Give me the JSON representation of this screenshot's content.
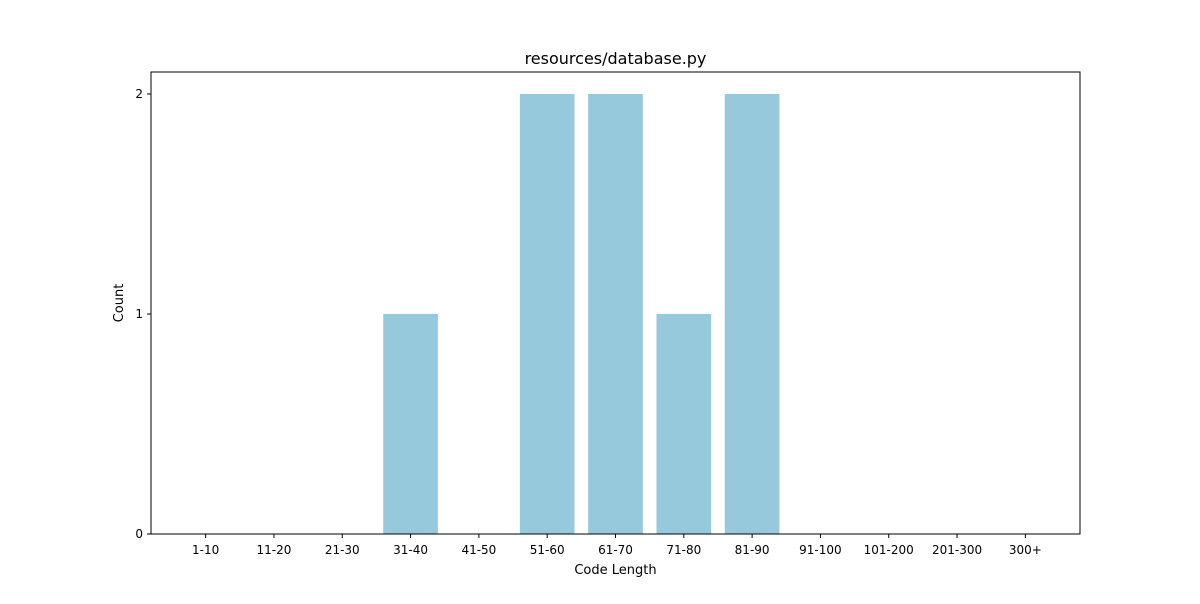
{
  "chart_data": {
    "type": "bar",
    "title": "resources/database.py",
    "xlabel": "Code Length",
    "ylabel": "Count",
    "categories": [
      "1-10",
      "11-20",
      "21-30",
      "31-40",
      "41-50",
      "51-60",
      "61-70",
      "71-80",
      "81-90",
      "91-100",
      "101-200",
      "201-300",
      "300+"
    ],
    "values": [
      0,
      0,
      0,
      1,
      0,
      2,
      2,
      1,
      2,
      0,
      0,
      0,
      0
    ],
    "ylim": [
      0,
      2.1
    ],
    "yticks": [
      0,
      1,
      2
    ],
    "grid": false,
    "bar_color": "#96c9dc"
  }
}
